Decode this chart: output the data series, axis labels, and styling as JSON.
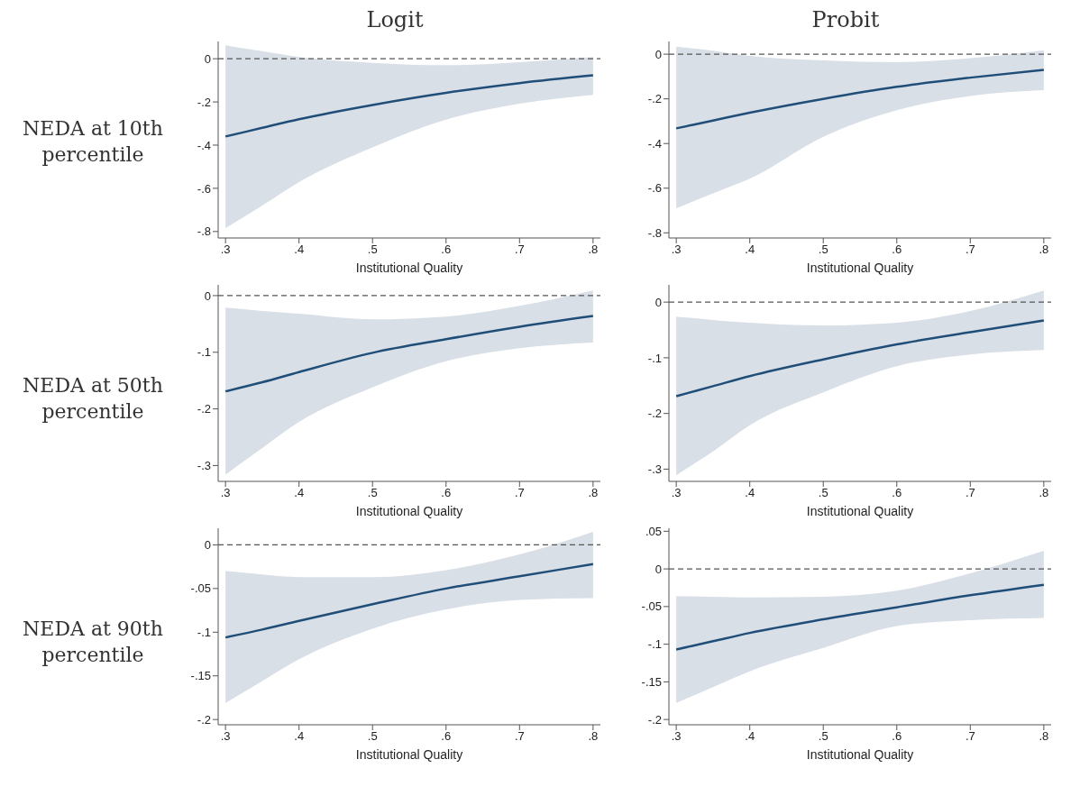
{
  "chart_data": [
    {
      "type": "line",
      "title": "Logit",
      "ylabel": "NEDA at 10th percentile",
      "xlabel": "Institutional Quality",
      "x": [
        0.3,
        0.35,
        0.4,
        0.5,
        0.6,
        0.7,
        0.8
      ],
      "series": [
        {
          "color": "#1f4e79",
          "values": [
            -0.36,
            -0.32,
            -0.28,
            -0.214,
            -0.158,
            -0.113,
            -0.077
          ],
          "lower": [
            -0.784,
            -0.68,
            -0.571,
            -0.41,
            -0.282,
            -0.208,
            -0.167
          ],
          "upper": [
            0.062,
            0.035,
            0.008,
            -0.019,
            -0.03,
            -0.016,
            0.008
          ]
        }
      ],
      "xlim": [
        0.29,
        0.81
      ],
      "xticks": [
        {
          "value": 0.3,
          "label": ".3"
        },
        {
          "value": 0.4,
          "label": ".4"
        },
        {
          "value": 0.5,
          "label": ".5"
        },
        {
          "value": 0.6,
          "label": ".6"
        },
        {
          "value": 0.7,
          "label": ".7"
        },
        {
          "value": 0.8,
          "label": ".8"
        }
      ],
      "ylim": [
        -0.83,
        0.08
      ],
      "yticks": [
        {
          "value": -0.8,
          "label": "-.8"
        },
        {
          "value": -0.6,
          "label": "-.6"
        },
        {
          "value": -0.4,
          "label": "-.4"
        },
        {
          "value": -0.2,
          "label": "-.2"
        },
        {
          "value": 0,
          "label": "0"
        }
      ],
      "ref_lines": [
        {
          "axis": "y",
          "value": 0,
          "color": "#555555",
          "line_style": "dashed"
        }
      ],
      "marker": "none",
      "line_style": "solid"
    },
    {
      "type": "line",
      "title": "Probit",
      "xlabel": "Institutional Quality",
      "x": [
        0.3,
        0.35,
        0.4,
        0.5,
        0.6,
        0.7,
        0.8
      ],
      "series": [
        {
          "color": "#1f4e79",
          "values": [
            -0.332,
            -0.297,
            -0.262,
            -0.2,
            -0.146,
            -0.105,
            -0.07
          ],
          "lower": [
            -0.69,
            -0.623,
            -0.558,
            -0.37,
            -0.251,
            -0.187,
            -0.161
          ],
          "upper": [
            0.034,
            0.016,
            -0.008,
            -0.028,
            -0.036,
            -0.018,
            0.018
          ]
        }
      ],
      "xlim": [
        0.29,
        0.81
      ],
      "xticks": [
        {
          "value": 0.3,
          "label": ".3"
        },
        {
          "value": 0.4,
          "label": ".4"
        },
        {
          "value": 0.5,
          "label": ".5"
        },
        {
          "value": 0.6,
          "label": ".6"
        },
        {
          "value": 0.7,
          "label": ".7"
        },
        {
          "value": 0.8,
          "label": ".8"
        }
      ],
      "ylim": [
        -0.823,
        0.057
      ],
      "yticks": [
        {
          "value": -0.8,
          "label": "-.8"
        },
        {
          "value": -0.6,
          "label": "-.6"
        },
        {
          "value": -0.4,
          "label": "-.4"
        },
        {
          "value": -0.2,
          "label": "-.2"
        },
        {
          "value": 0,
          "label": "0"
        }
      ],
      "ref_lines": [
        {
          "axis": "y",
          "value": 0,
          "color": "#555555",
          "line_style": "dashed"
        }
      ],
      "marker": "none",
      "line_style": "solid"
    },
    {
      "type": "line",
      "ylabel": "NEDA at 50th percentile",
      "xlabel": "Institutional Quality",
      "x": [
        0.3,
        0.35,
        0.4,
        0.5,
        0.6,
        0.7,
        0.8
      ],
      "series": [
        {
          "color": "#1f4e79",
          "values": [
            -0.169,
            -0.153,
            -0.135,
            -0.101,
            -0.077,
            -0.055,
            -0.036
          ],
          "lower": [
            -0.316,
            -0.269,
            -0.223,
            -0.162,
            -0.116,
            -0.093,
            -0.083
          ],
          "upper": [
            -0.021,
            -0.027,
            -0.032,
            -0.042,
            -0.037,
            -0.018,
            0.009
          ]
        }
      ],
      "xlim": [
        0.29,
        0.81
      ],
      "xticks": [
        {
          "value": 0.3,
          "label": ".3"
        },
        {
          "value": 0.4,
          "label": ".4"
        },
        {
          "value": 0.5,
          "label": ".5"
        },
        {
          "value": 0.6,
          "label": ".6"
        },
        {
          "value": 0.7,
          "label": ".7"
        },
        {
          "value": 0.8,
          "label": ".8"
        }
      ],
      "ylim": [
        -0.328,
        0.019
      ],
      "yticks": [
        {
          "value": -0.3,
          "label": "-.3"
        },
        {
          "value": -0.2,
          "label": "-.2"
        },
        {
          "value": -0.1,
          "label": "-.1"
        },
        {
          "value": 0,
          "label": "0"
        }
      ],
      "ref_lines": [
        {
          "axis": "y",
          "value": 0,
          "color": "#555555",
          "line_style": "dashed"
        }
      ],
      "marker": "none",
      "line_style": "solid"
    },
    {
      "type": "line",
      "xlabel": "Institutional Quality",
      "x": [
        0.3,
        0.35,
        0.4,
        0.5,
        0.6,
        0.7,
        0.8
      ],
      "series": [
        {
          "color": "#1f4e79",
          "values": [
            -0.169,
            -0.151,
            -0.133,
            -0.103,
            -0.076,
            -0.054,
            -0.033
          ],
          "lower": [
            -0.311,
            -0.268,
            -0.221,
            -0.162,
            -0.115,
            -0.094,
            -0.086
          ],
          "upper": [
            -0.026,
            -0.032,
            -0.037,
            -0.042,
            -0.037,
            -0.016,
            0.021
          ]
        }
      ],
      "xlim": [
        0.29,
        0.81
      ],
      "xticks": [
        {
          "value": 0.3,
          "label": ".3"
        },
        {
          "value": 0.4,
          "label": ".4"
        },
        {
          "value": 0.5,
          "label": ".5"
        },
        {
          "value": 0.6,
          "label": ".6"
        },
        {
          "value": 0.7,
          "label": ".7"
        },
        {
          "value": 0.8,
          "label": ".8"
        }
      ],
      "ylim": [
        -0.322,
        0.031
      ],
      "yticks": [
        {
          "value": -0.3,
          "label": "-.3"
        },
        {
          "value": -0.2,
          "label": "-.2"
        },
        {
          "value": -0.1,
          "label": "-.1"
        },
        {
          "value": 0,
          "label": "0"
        }
      ],
      "ref_lines": [
        {
          "axis": "y",
          "value": 0,
          "color": "#555555",
          "line_style": "dashed"
        }
      ],
      "marker": "none",
      "line_style": "solid"
    },
    {
      "type": "line",
      "ylabel": "NEDA at 90th percentile",
      "xlabel": "Institutional Quality",
      "x": [
        0.3,
        0.35,
        0.4,
        0.5,
        0.6,
        0.7,
        0.8
      ],
      "series": [
        {
          "color": "#1f4e79",
          "values": [
            -0.106,
            -0.097,
            -0.087,
            -0.068,
            -0.05,
            -0.036,
            -0.022
          ],
          "lower": [
            -0.181,
            -0.156,
            -0.131,
            -0.096,
            -0.074,
            -0.063,
            -0.061
          ],
          "upper": [
            -0.03,
            -0.034,
            -0.037,
            -0.037,
            -0.029,
            -0.011,
            0.015
          ]
        }
      ],
      "xlim": [
        0.29,
        0.81
      ],
      "xticks": [
        {
          "value": 0.3,
          "label": ".3"
        },
        {
          "value": 0.4,
          "label": ".4"
        },
        {
          "value": 0.5,
          "label": ".5"
        },
        {
          "value": 0.6,
          "label": ".6"
        },
        {
          "value": 0.7,
          "label": ".7"
        },
        {
          "value": 0.8,
          "label": ".8"
        }
      ],
      "ylim": [
        -0.206,
        0.019
      ],
      "yticks": [
        {
          "value": -0.2,
          "label": "-.2"
        },
        {
          "value": -0.15,
          "label": "-.15"
        },
        {
          "value": -0.1,
          "label": "-.1"
        },
        {
          "value": -0.05,
          "label": "-.05"
        },
        {
          "value": 0,
          "label": "0"
        }
      ],
      "ref_lines": [
        {
          "axis": "y",
          "value": 0,
          "color": "#555555",
          "line_style": "dashed"
        }
      ],
      "marker": "none",
      "line_style": "solid"
    },
    {
      "type": "line",
      "xlabel": "Institutional Quality",
      "x": [
        0.3,
        0.35,
        0.4,
        0.5,
        0.6,
        0.7,
        0.8
      ],
      "series": [
        {
          "color": "#1f4e79",
          "values": [
            -0.107,
            -0.096,
            -0.085,
            -0.067,
            -0.051,
            -0.035,
            -0.021
          ],
          "lower": [
            -0.178,
            -0.157,
            -0.136,
            -0.105,
            -0.076,
            -0.068,
            -0.065
          ],
          "upper": [
            -0.036,
            -0.037,
            -0.038,
            -0.037,
            -0.029,
            -0.006,
            0.024
          ]
        }
      ],
      "xlim": [
        0.29,
        0.81
      ],
      "xticks": [
        {
          "value": 0.3,
          "label": ".3"
        },
        {
          "value": 0.4,
          "label": ".4"
        },
        {
          "value": 0.5,
          "label": ".5"
        },
        {
          "value": 0.6,
          "label": ".6"
        },
        {
          "value": 0.7,
          "label": ".7"
        },
        {
          "value": 0.8,
          "label": ".8"
        }
      ],
      "ylim": [
        -0.207,
        0.054
      ],
      "yticks": [
        {
          "value": -0.2,
          "label": "-.2"
        },
        {
          "value": -0.15,
          "label": "-.15"
        },
        {
          "value": -0.1,
          "label": "-.1"
        },
        {
          "value": -0.05,
          "label": "-.05"
        },
        {
          "value": 0,
          "label": "0"
        },
        {
          "value": 0.05,
          "label": ".05"
        }
      ],
      "ref_lines": [
        {
          "axis": "y",
          "value": 0,
          "color": "#555555",
          "line_style": "dashed"
        }
      ],
      "marker": "none",
      "line_style": "solid"
    }
  ]
}
